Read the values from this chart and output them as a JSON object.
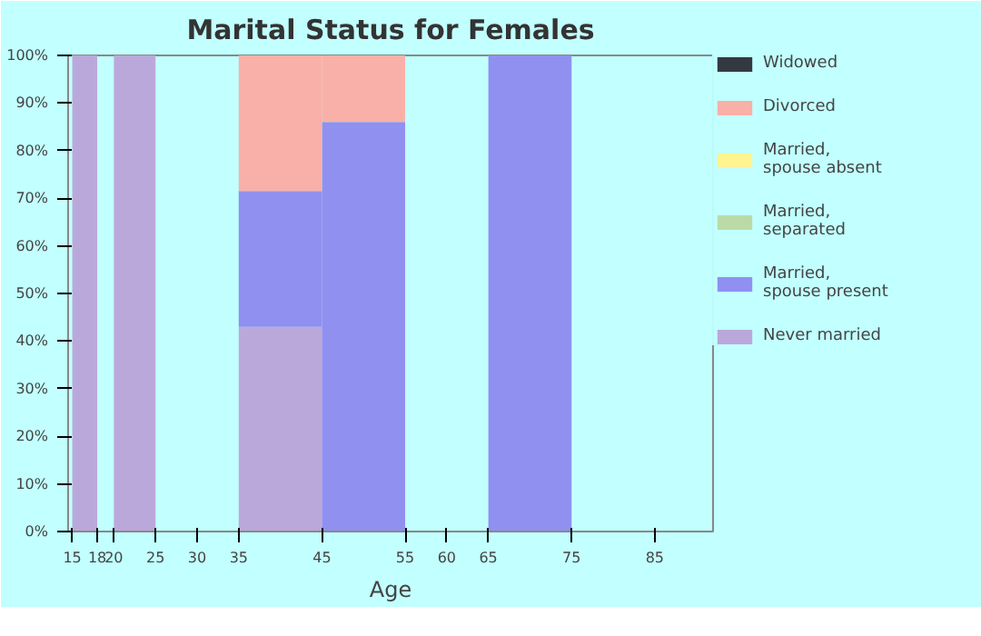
{
  "chart_data": {
    "type": "bar",
    "stacked": true,
    "title": "Marital Status for Females",
    "xlabel": "Age",
    "x": [
      16.5,
      22.5,
      40,
      50,
      70
    ],
    "xlim": [
      14.5,
      92
    ],
    "xticks": [
      15,
      18,
      20,
      25,
      30,
      35,
      45,
      55,
      60,
      65,
      75,
      85
    ],
    "ylim": [
      0,
      100
    ],
    "yticks": [
      {
        "value": 0,
        "label": "0%"
      },
      {
        "value": 10,
        "label": "10%"
      },
      {
        "value": 20,
        "label": "20%"
      },
      {
        "value": 30,
        "label": "30%"
      },
      {
        "value": 40,
        "label": "40%"
      },
      {
        "value": 50,
        "label": "50%"
      },
      {
        "value": 60,
        "label": "60%"
      },
      {
        "value": 70,
        "label": "70%"
      },
      {
        "value": 80,
        "label": "80%"
      },
      {
        "value": 90,
        "label": "90%"
      },
      {
        "value": 100,
        "label": "100%"
      }
    ],
    "legend": "right",
    "series": [
      {
        "name": "Never married",
        "color": "#bba8da",
        "values": [
          100,
          100,
          43,
          0,
          0
        ]
      },
      {
        "name": "Married,\nspouse present",
        "color": "#9090f0",
        "values": [
          0,
          0,
          28.5,
          86,
          100
        ]
      },
      {
        "name": "Married,\nseparated",
        "color": "#bcdaa8",
        "values": [
          0,
          0,
          0,
          0,
          0
        ]
      },
      {
        "name": "Married,\nspouse absent",
        "color": "#fff490",
        "values": [
          0,
          0,
          0,
          0,
          0
        ]
      },
      {
        "name": "Divorced",
        "color": "#f8b0a8",
        "values": [
          0,
          0,
          28.5,
          14,
          0
        ]
      },
      {
        "name": "Widowed",
        "color": "#333940",
        "values": [
          0,
          0,
          0,
          0,
          0
        ]
      }
    ]
  }
}
